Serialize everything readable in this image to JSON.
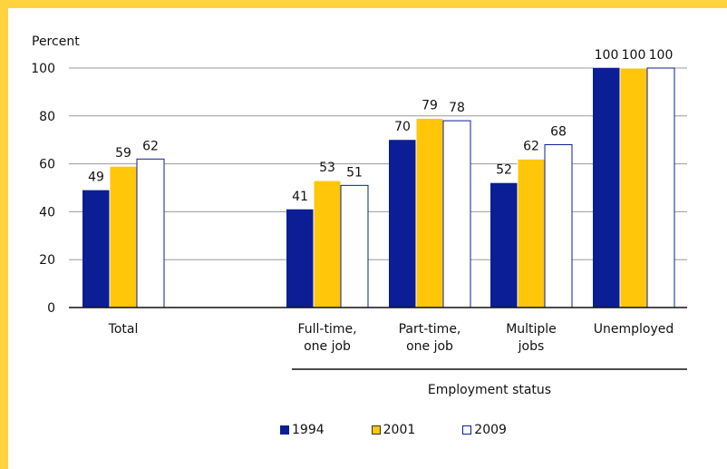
{
  "chart_data": {
    "type": "bar",
    "ylabel": "Percent",
    "xlabel": "Employment status",
    "ylim": [
      0,
      100
    ],
    "yticks": [
      0,
      20,
      40,
      60,
      80,
      100
    ],
    "grid": true,
    "legend_position": "bottom",
    "categories": [
      [
        "Total"
      ],
      [
        "Full-time,",
        "one job"
      ],
      [
        "Part-time,",
        "one job"
      ],
      [
        "Multiple",
        "jobs"
      ],
      [
        "Unemployed"
      ]
    ],
    "series": [
      {
        "name": "1994",
        "color": "#0b1e96",
        "values": [
          49,
          41,
          70,
          52,
          100
        ]
      },
      {
        "name": "2001",
        "color": "#ffc60a",
        "values": [
          59,
          53,
          79,
          62,
          100
        ]
      },
      {
        "name": "2009",
        "color": "#ffffff",
        "values": [
          62,
          51,
          78,
          68,
          100
        ]
      }
    ]
  }
}
